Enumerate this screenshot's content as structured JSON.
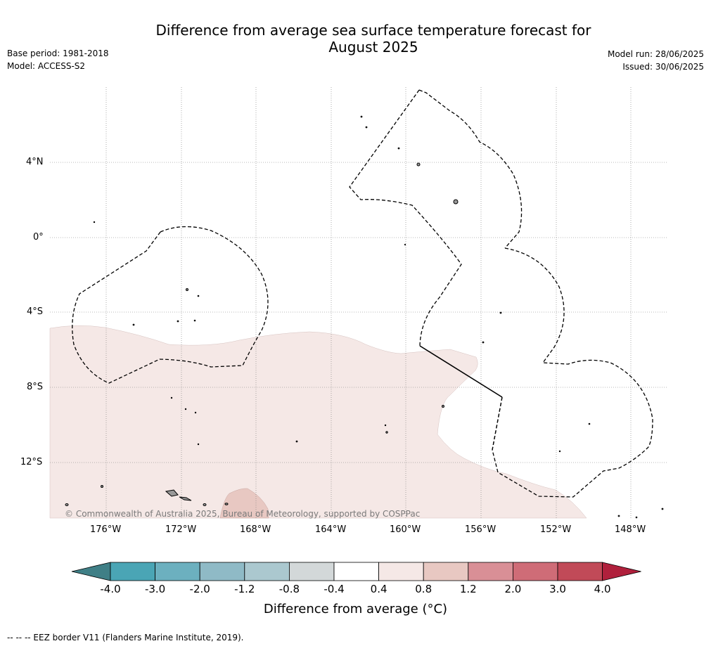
{
  "header": {
    "title_line1": "Difference from average sea surface temperature forecast for",
    "title_line2": "August 2025",
    "base_period": "Base period: 1981-2018",
    "model": "Model: ACCESS-S2",
    "model_run": "Model run: 28/06/2025",
    "issued": "Issued: 30/06/2025"
  },
  "map": {
    "lat_labels": [
      "4°N",
      "0°",
      "4°S",
      "8°S",
      "12°S"
    ],
    "lon_labels": [
      "176°W",
      "172°W",
      "168°W",
      "164°W",
      "160°W",
      "156°W",
      "152°W",
      "148°W"
    ],
    "credit": "© Commonwealth of Australia 2025, Bureau of Meteorology, supported by COSPPac",
    "colors": {
      "anomaly_0_4_to_0_8": "#f5e8e6",
      "anomaly_0_8_to_1_2": "#e8c8c2",
      "land": "#999999"
    }
  },
  "colorbar": {
    "ticks": [
      "-4.0",
      "-3.0",
      "-2.0",
      "-1.2",
      "-0.8",
      "-0.4",
      "0.4",
      "0.8",
      "1.2",
      "2.0",
      "3.0",
      "4.0"
    ],
    "colors": [
      "#3f7f86",
      "#4aa5b5",
      "#6cb0bf",
      "#8fbac6",
      "#abc8cf",
      "#d3d8d9",
      "#ffffff",
      "#f5e8e6",
      "#e8c8c2",
      "#d98f96",
      "#cf6c77",
      "#c14a58",
      "#b0203c"
    ],
    "label": "Difference from average (°C)"
  },
  "footer": {
    "legend": "--  --  -- EEZ border V11 (Flanders Marine Institute, 2019)."
  }
}
